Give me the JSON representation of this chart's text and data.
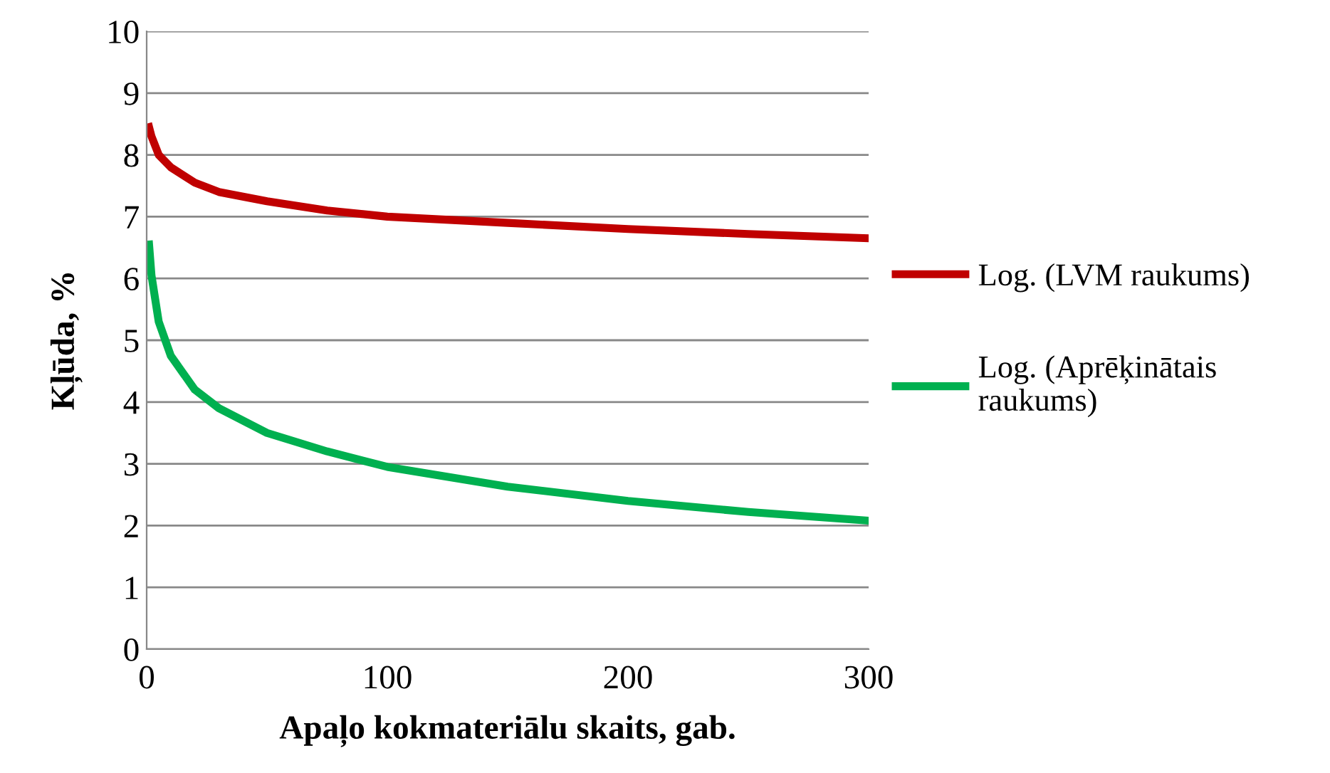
{
  "chart_data": {
    "type": "line",
    "xlabel": "Apaļo kokmateriālu skaits, gab.",
    "ylabel": "Kļūda, %",
    "xlim": [
      0,
      300
    ],
    "xticks": [
      0,
      100,
      200,
      300
    ],
    "ylim": [
      0,
      10
    ],
    "yticks": [
      0,
      1,
      2,
      3,
      4,
      5,
      6,
      7,
      8,
      9,
      10
    ],
    "grid": "y",
    "legend": "right",
    "marker": "none",
    "line_style": "solid",
    "series": [
      {
        "name": "Log. (LVM raukums)",
        "color": "#c00000",
        "x": [
          1,
          2,
          5,
          10,
          20,
          30,
          50,
          75,
          100,
          150,
          200,
          250,
          300
        ],
        "values": [
          8.45,
          8.3,
          8.0,
          7.8,
          7.55,
          7.4,
          7.25,
          7.1,
          7.0,
          6.9,
          6.8,
          6.72,
          6.65
        ]
      },
      {
        "name": "Log. (Aprēķinātais raukums)",
        "color": "#00b050",
        "x": [
          1,
          2,
          5,
          10,
          20,
          30,
          50,
          75,
          100,
          150,
          200,
          250,
          300
        ],
        "values": [
          6.55,
          6.05,
          5.3,
          4.75,
          4.2,
          3.9,
          3.5,
          3.2,
          2.95,
          2.63,
          2.4,
          2.22,
          2.08
        ]
      }
    ]
  }
}
